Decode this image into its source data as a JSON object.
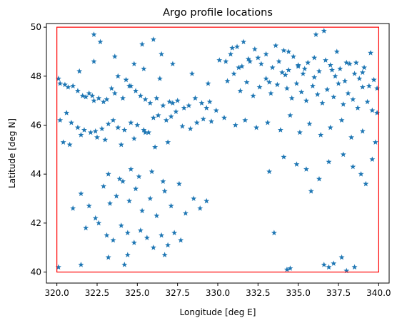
{
  "chart_data": {
    "type": "scatter",
    "title": "Argo profile locations",
    "xlabel": "Longitude [deg E]",
    "ylabel": "Latitude [deg N]",
    "xlim": [
      319.35,
      340.65
    ],
    "ylim": [
      39.55,
      50.15
    ],
    "xticks": [
      320.0,
      322.5,
      325.0,
      327.5,
      330.0,
      332.5,
      335.0,
      337.5,
      340.0
    ],
    "xtick_labels": [
      "320.0",
      "322.5",
      "325.0",
      "327.5",
      "330.0",
      "332.5",
      "335.0",
      "337.5",
      "340.0"
    ],
    "yticks": [
      40,
      42,
      44,
      46,
      48,
      50
    ],
    "ytick_labels": [
      "40",
      "42",
      "44",
      "46",
      "48",
      "50"
    ],
    "grid": false,
    "marker": "star",
    "marker_color": "#1f77b4",
    "box": {
      "color": "#ff0000",
      "lon": [
        320.0,
        340.0
      ],
      "lat": [
        40.0,
        50.0
      ]
    },
    "x": [
      320.1,
      320.2,
      320.5,
      320.7,
      321.0,
      321.3,
      321.6,
      321.8,
      322.0,
      322.2,
      322.3,
      322.6,
      322.9,
      323.1,
      323.4,
      323.6,
      324.1,
      324.3,
      324.5,
      324.9,
      325.2,
      325.5,
      325.8,
      326.2,
      326.6,
      327.0,
      327.2,
      327.5,
      327.9,
      328.2,
      328.6,
      329.0,
      329.3,
      329.5,
      329.9,
      320.2,
      320.6,
      320.9,
      321.3,
      321.7,
      322.1,
      322.4,
      322.8,
      323.2,
      323.5,
      323.8,
      324.2,
      324.6,
      325.0,
      325.4,
      325.7,
      326.0,
      326.3,
      326.8,
      327.1,
      327.4,
      327.8,
      328.3,
      328.7,
      329.1,
      329.6,
      320.4,
      320.8,
      321.5,
      322.5,
      323.0,
      324.0,
      324.8,
      325.5,
      326.1,
      326.9,
      330.5,
      330.8,
      331.2,
      331.5,
      331.9,
      332.3,
      332.7,
      333.0,
      333.4,
      333.8,
      334.1,
      334.4,
      334.7,
      335.0,
      335.3,
      335.6,
      336.0,
      336.3,
      336.7,
      337.0,
      337.3,
      337.6,
      337.9,
      338.2,
      338.5,
      338.8,
      339.1,
      339.4,
      339.7,
      330.6,
      331.0,
      331.4,
      331.8,
      332.2,
      332.6,
      333.0,
      333.3,
      333.7,
      334.0,
      334.3,
      334.6,
      334.9,
      335.2,
      335.5,
      335.9,
      336.2,
      336.5,
      336.8,
      337.2,
      337.5,
      337.8,
      338.1,
      338.4,
      338.7,
      339.0,
      339.3,
      339.6,
      339.9,
      330.4,
      331.1,
      331.7,
      332.4,
      333.1,
      333.9,
      334.5,
      335.1,
      335.7,
      336.4,
      337.0,
      337.7,
      338.3,
      339.0,
      339.8,
      321.0,
      321.5,
      322.0,
      322.4,
      322.9,
      323.3,
      323.7,
      324.1,
      324.5,
      324.9,
      325.3,
      325.8,
      326.2,
      326.7,
      327.1,
      327.6,
      328.0,
      328.5,
      328.9,
      329.3,
      321.8,
      322.6,
      323.1,
      323.5,
      324.0,
      324.4,
      324.8,
      325.2,
      325.6,
      326.0,
      326.5,
      326.9,
      327.3,
      327.7,
      323.2,
      323.9,
      324.6,
      325.1,
      325.9,
      326.6,
      320.1,
      321.5,
      323.2,
      324.2,
      324.4,
      326.7,
      333.5,
      334.3,
      334.5,
      336.6,
      336.9,
      337.2,
      337.7,
      338.0,
      338.5,
      334.1,
      335.5,
      336.9,
      337.8,
      338.4,
      339.2,
      339.6,
      335.8,
      333.2,
      334.9,
      336.3,
      338.9,
      321.4,
      322.3,
      322.7,
      323.6,
      324.8,
      325.3,
      326.0,
      326.5,
      330.1,
      330.9,
      331.6,
      332.5,
      333.6,
      334.4,
      335.4,
      336.1,
      336.6,
      337.4,
      338.6,
      339.5,
      322.3,
      323.8,
      324.6,
      325.4,
      326.4,
      327.2,
      328.4,
      329.4,
      331.3,
      332.0,
      333.2,
      334.2,
      335.0,
      336.0,
      337.1,
      338.0,
      339.0,
      339.9
    ],
    "y": [
      47.9,
      47.7,
      47.65,
      47.55,
      47.6,
      47.4,
      47.2,
      47.15,
      47.3,
      47.2,
      47.0,
      47.1,
      46.95,
      47.05,
      47.5,
      47.3,
      47.1,
      47.85,
      47.6,
      47.4,
      47.2,
      47.05,
      46.9,
      47.1,
      46.8,
      46.95,
      46.9,
      47.0,
      46.7,
      46.8,
      47.1,
      46.9,
      46.7,
      46.95,
      46.6,
      46.2,
      46.5,
      46.1,
      45.9,
      45.8,
      45.7,
      45.75,
      45.85,
      46.05,
      46.2,
      45.9,
      45.8,
      46.1,
      46.0,
      45.8,
      45.7,
      46.3,
      46.4,
      46.2,
      46.35,
      46.55,
      45.95,
      45.85,
      46.1,
      46.25,
      46.15,
      45.3,
      45.2,
      45.6,
      45.5,
      45.4,
      45.2,
      45.45,
      45.7,
      45.1,
      45.3,
      48.6,
      48.9,
      49.2,
      48.4,
      48.7,
      49.1,
      48.5,
      48.9,
      48.35,
      48.6,
      49.05,
      48.25,
      48.8,
      48.4,
      48.1,
      48.55,
      48.75,
      48.2,
      48.65,
      48.45,
      48.0,
      48.3,
      47.8,
      48.5,
      48.1,
      47.9,
      48.35,
      47.6,
      47.85,
      47.8,
      48.1,
      47.4,
      47.75,
      47.2,
      47.55,
      47.9,
      47.3,
      47.65,
      48.15,
      47.5,
      47.1,
      47.7,
      47.35,
      47.0,
      47.6,
      47.25,
      46.9,
      47.45,
      47.15,
      47.7,
      46.85,
      47.3,
      47.05,
      46.7,
      47.55,
      46.95,
      46.6,
      46.5,
      46.3,
      46.0,
      46.2,
      45.9,
      46.1,
      45.8,
      46.4,
      45.7,
      46.05,
      45.6,
      45.9,
      46.2,
      45.5,
      45.75,
      45.3,
      42.6,
      43.2,
      42.7,
      42.2,
      43.5,
      42.8,
      43.1,
      43.7,
      42.9,
      43.4,
      42.5,
      43.0,
      42.3,
      43.3,
      42.7,
      43.6,
      42.4,
      43.0,
      42.6,
      42.9,
      41.8,
      42.0,
      41.5,
      41.3,
      41.9,
      41.6,
      41.2,
      41.7,
      41.4,
      41.0,
      41.5,
      41.1,
      41.6,
      41.3,
      44.0,
      43.8,
      44.2,
      43.9,
      44.1,
      43.7,
      40.2,
      40.3,
      40.6,
      40.3,
      40.7,
      40.7,
      41.6,
      40.1,
      40.15,
      40.3,
      40.2,
      40.35,
      40.6,
      40.05,
      40.2,
      44.7,
      44.2,
      44.5,
      44.8,
      44.3,
      43.6,
      44.6,
      43.3,
      44.1,
      44.4,
      43.8,
      44.0,
      48.2,
      49.7,
      49.4,
      48.8,
      48.5,
      49.3,
      49.5,
      48.9,
      48.65,
      49.15,
      49.4,
      48.75,
      49.25,
      49.0,
      48.3,
      49.7,
      49.85,
      49.0,
      48.55,
      48.95,
      48.6,
      48.0,
      47.6,
      48.3,
      47.9,
      48.5,
      48.1,
      47.7,
      48.35,
      48.6,
      47.75,
      48.05,
      48.45,
      47.95,
      48.25,
      48.55,
      48.15,
      47.5
    ]
  }
}
